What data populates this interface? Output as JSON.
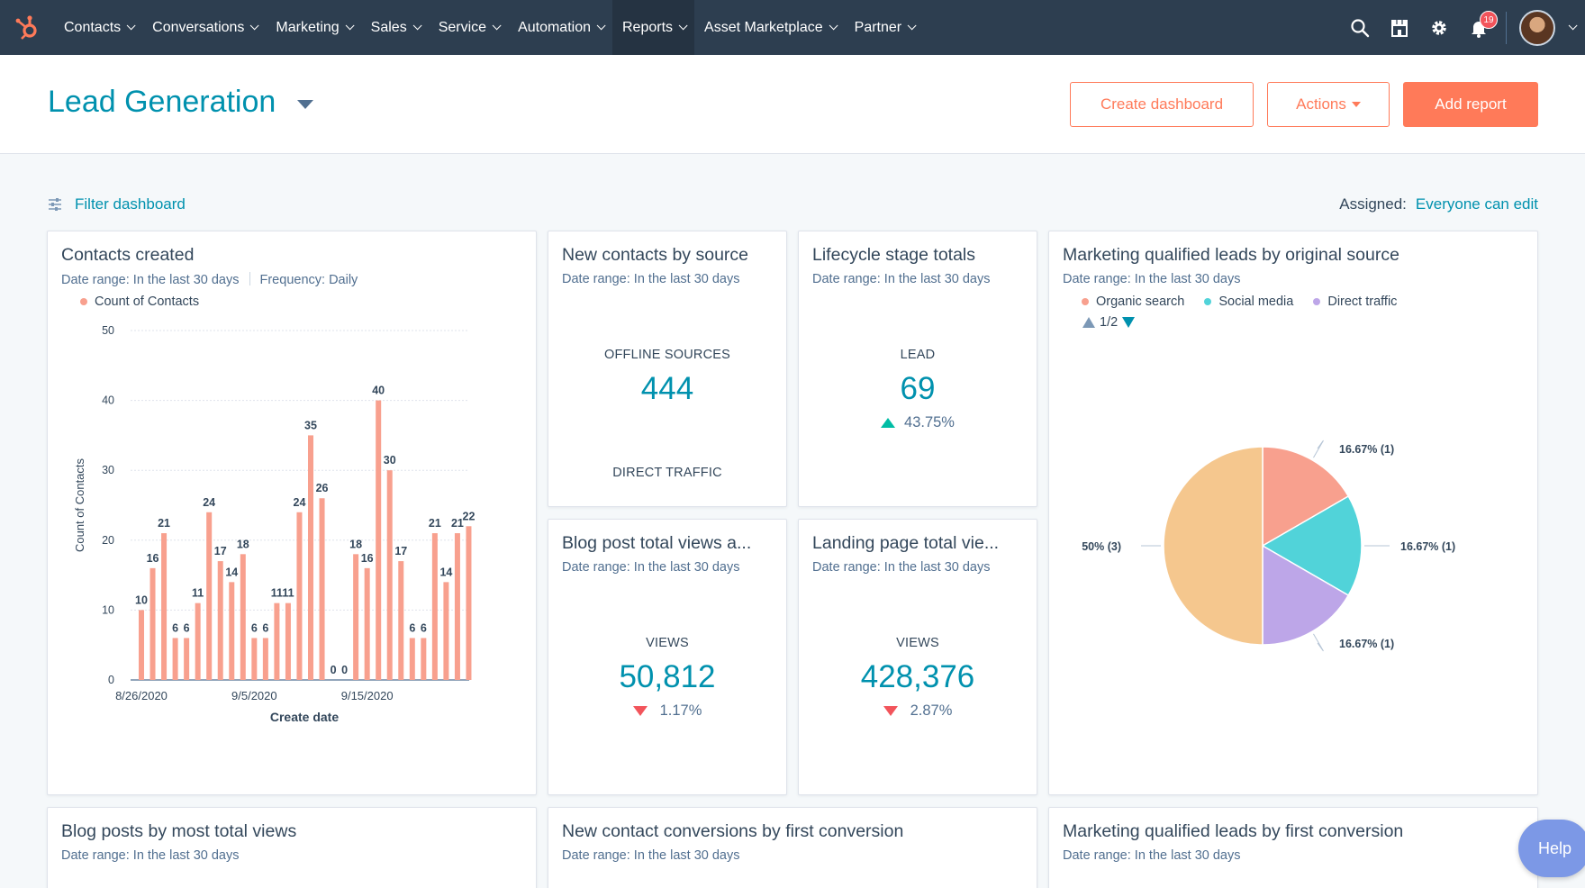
{
  "nav": {
    "items": [
      {
        "label": "Contacts"
      },
      {
        "label": "Conversations"
      },
      {
        "label": "Marketing"
      },
      {
        "label": "Sales"
      },
      {
        "label": "Service"
      },
      {
        "label": "Automation"
      },
      {
        "label": "Reports"
      },
      {
        "label": "Asset Marketplace"
      },
      {
        "label": "Partner"
      }
    ],
    "active": "Reports",
    "notifications_count": "19"
  },
  "header": {
    "title": "Lead Generation",
    "create_dashboard": "Create dashboard",
    "actions": "Actions",
    "add_report": "Add report"
  },
  "filter": {
    "label": "Filter dashboard",
    "assigned_label": "Assigned:",
    "assigned_value": "Everyone can edit"
  },
  "cards": {
    "contacts_created": {
      "title": "Contacts created",
      "date_range": "Date range: In the last 30 days",
      "frequency": "Frequency: Daily",
      "legend": "Count of Contacts"
    },
    "new_contacts_source": {
      "title": "New contacts by source",
      "date_range": "Date range: In the last 30 days",
      "label1": "OFFLINE SOURCES",
      "value1": "444",
      "label2": "DIRECT TRAFFIC"
    },
    "lifecycle": {
      "title": "Lifecycle stage totals",
      "date_range": "Date range: In the last 30 days",
      "label": "LEAD",
      "value": "69",
      "change": "43.75%"
    },
    "mql_source": {
      "title": "Marketing qualified leads by original source",
      "date_range": "Date range: In the last 30 days",
      "legend": [
        "Organic search",
        "Social media",
        "Direct traffic"
      ],
      "pager": "1/2"
    },
    "blog_views": {
      "title": "Blog post total views a...",
      "date_range": "Date range: In the last 30 days",
      "label": "VIEWS",
      "value": "50,812",
      "change": "1.17%"
    },
    "landing_views": {
      "title": "Landing page total vie...",
      "date_range": "Date range: In the last 30 days",
      "label": "VIEWS",
      "value": "428,376",
      "change": "2.87%"
    },
    "blog_posts": {
      "title": "Blog posts by most total views",
      "date_range": "Date range: In the last 30 days"
    },
    "conversions": {
      "title": "New contact conversions by first conversion",
      "date_range": "Date range: In the last 30 days"
    },
    "mql_first": {
      "title": "Marketing qualified leads by first conversion",
      "date_range": "Date range: In the last 30 days"
    }
  },
  "help_label": "Help",
  "colors": {
    "bar": "#f8a08e",
    "organic": "#f8a08e",
    "social": "#51d3d9",
    "direct": "#bda6e8",
    "other": "#f5c78e",
    "accent": "#0091ae",
    "orange": "#ff7a59"
  },
  "chart_data": [
    {
      "type": "bar",
      "xlabel": "Create date",
      "ylabel": "Count of Contacts",
      "ylim": [
        0,
        50
      ],
      "yticks": [
        0,
        10,
        20,
        30,
        40,
        50
      ],
      "x_tick_labels": [
        "8/26/2020",
        "9/5/2020",
        "9/15/2020"
      ],
      "series": [
        {
          "name": "Count of Contacts",
          "values": [
            10,
            16,
            21,
            6,
            6,
            11,
            24,
            17,
            14,
            18,
            6,
            6,
            11,
            11,
            24,
            35,
            26,
            0,
            0,
            18,
            16,
            40,
            30,
            17,
            6,
            6,
            21,
            14,
            21,
            22
          ]
        }
      ],
      "grid": true
    },
    {
      "type": "pie",
      "slices": [
        {
          "value": 16.67,
          "label": "16.67% (1)",
          "color": "#f8a08e"
        },
        {
          "value": 16.67,
          "label": "16.67% (1)",
          "color": "#51d3d9"
        },
        {
          "value": 16.67,
          "label": "16.67% (1)",
          "color": "#bda6e8"
        },
        {
          "value": 50,
          "label": "50% (3)",
          "color": "#f5c78e"
        }
      ]
    }
  ]
}
